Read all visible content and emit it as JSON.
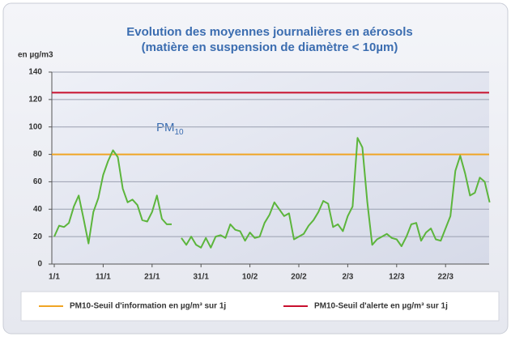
{
  "chart_data": {
    "type": "line",
    "title": "Evolution des moyennes journalières en aérosols",
    "subtitle": "(matière en suspension de diamètre < 10µm)",
    "y_label": "en µg/m3",
    "annotation": "PM",
    "annotation_sub": "10",
    "categories": [
      "1/1",
      null,
      null,
      null,
      null,
      null,
      null,
      null,
      null,
      null,
      "11/1",
      null,
      null,
      null,
      null,
      null,
      null,
      null,
      null,
      null,
      "21/1",
      null,
      null,
      null,
      null,
      null,
      null,
      null,
      null,
      null,
      "31/1",
      null,
      null,
      null,
      null,
      null,
      null,
      null,
      null,
      null,
      "10/2",
      null,
      null,
      null,
      null,
      null,
      null,
      null,
      null,
      null,
      "20/2",
      null,
      null,
      null,
      null,
      null,
      null,
      null,
      null,
      null,
      "2/3",
      null,
      null,
      null,
      null,
      null,
      null,
      null,
      null,
      null,
      "12/3",
      null,
      null,
      null,
      null,
      null,
      null,
      null,
      null,
      null,
      "22/3",
      null,
      null,
      null,
      null,
      null,
      null,
      null,
      null,
      null
    ],
    "series": [
      {
        "color": "#5cb53c",
        "values": [
          20,
          28,
          27,
          30,
          42,
          50,
          33,
          15,
          38,
          48,
          65,
          75,
          83,
          78,
          55,
          45,
          47,
          43,
          32,
          31,
          38,
          50,
          33,
          29,
          29,
          null,
          19,
          14,
          20,
          14,
          12,
          19,
          12,
          20,
          21,
          19,
          29,
          25,
          24,
          17,
          23,
          19,
          20,
          30,
          36,
          45,
          40,
          35,
          37,
          18,
          20,
          22,
          28,
          32,
          38,
          46,
          44,
          27,
          29,
          24,
          35,
          42,
          92,
          85,
          45,
          14,
          18,
          20,
          22,
          19,
          18,
          13,
          20,
          29,
          30,
          17,
          23,
          26,
          18,
          17,
          26,
          35,
          68,
          79,
          66,
          50,
          52,
          63,
          60,
          45
        ]
      }
    ],
    "thresholds": [
      {
        "name": "PM10-Seuil d'information en µg/m³ sur 1j",
        "color": "#f0a524",
        "value": 80
      },
      {
        "name": "PM10-Seuil d'alerte en µg/m³ sur 1j",
        "color": "#c8102e",
        "value": 125
      }
    ],
    "ylim": [
      0,
      140
    ],
    "yticks": [
      0,
      20,
      40,
      60,
      80,
      100,
      120,
      140
    ],
    "grid": true
  }
}
